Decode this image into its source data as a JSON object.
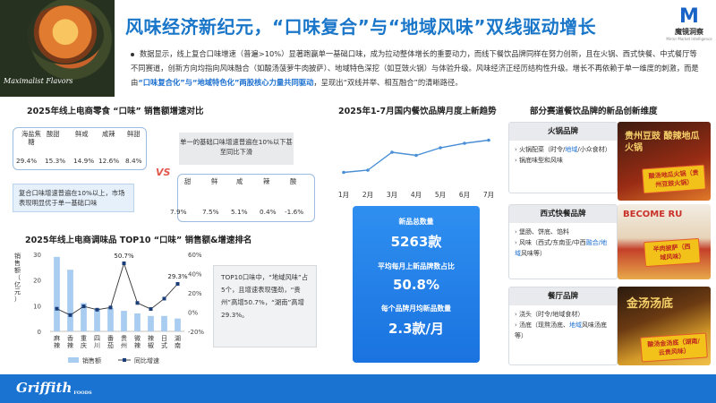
{
  "header": {
    "title": "风味经济新纪元，“口味复合”与“地域风味”双线驱动增长",
    "hero_caption": "Maximalist Flavors",
    "brand_name": "魔镜洞察",
    "brand_sub": "Mirror Market Intelligence",
    "brand_mark": "M"
  },
  "intro": {
    "p1": "数据显示，线上复合口味增速（普遍>10%）显著跑赢单一基础口味，成为拉动整体增长的重要动力，而线下餐饮品牌同样在努力创新，且在火锅、西式",
    "p2": "快餐、中式餐厅等不同赛道，创新方向均指向风味融合（如酸汤菠萝牛肉披萨）、地域特色深挖（如豆豉火锅）与体验升级。风味经济正经历结构性升级。",
    "p3a": "增长不再依赖于单一维度的刺激，而是由",
    "p3b": "“口味复合化”与“地域特色化”两股核心力量共同驱动",
    "p3c": "，呈现出“双线并举、相互融合”的清晰路径。"
  },
  "snacks": {
    "title": "2025年线上电商零食 “口味” 销售额增速对比",
    "vs": "VS",
    "compound": {
      "labels": [
        "海盐焦糖",
        "酸甜",
        "鲜咸",
        "咸辣",
        "鲜甜"
      ],
      "values": [
        "29.4%",
        "15.3%",
        "14.9%",
        "12.6%",
        "8.4%"
      ]
    },
    "single": {
      "labels": [
        "甜",
        "鲜",
        "咸",
        "辣",
        "酸"
      ],
      "values": [
        "7.9%",
        "7.5%",
        "5.1%",
        "0.4%",
        "-1.6%"
      ]
    },
    "note_single": "单一的基础口味增速普遍在10%以下甚至同比下滑",
    "note_compound": "复合口味增速普遍在10%以上，市场表现明显优于单一基础口味"
  },
  "seasoning_title": "2025年线上电商调味品 TOP10 “口味” 销售额&增速排名",
  "seasoning_callout": "TOP10口味中，“地域风味”占5个，且增速表现强劲，“贵州”高增50.7%，“湖南”高增29.3%。",
  "brand_trend_title": "2025年1-7月国内餐饮品牌月度上新趋势",
  "stats": {
    "l1": "新品总数量",
    "v1": "5263款",
    "l2": "平均每月上新品牌数占比",
    "v2": "50.8%",
    "l3": "每个品牌月均新品数量",
    "v3": "2.3款/月"
  },
  "right": {
    "title": "部分赛道餐饮品牌的新品创新维度",
    "boxes": [
      {
        "title": "火锅品牌",
        "items": [
          "火锅配菜（时令/",
          "地域",
          "/小众食材）",
          "锅底味型和风味"
        ]
      },
      {
        "title": "西式快餐品牌",
        "items": [
          "堡肠、饼底、馅料",
          "风味（西式/东南亚/中西",
          "融合/地域",
          "风味等）"
        ]
      },
      {
        "title": "餐厅品牌",
        "items": [
          "浇头（时令/地域食材）",
          "汤底（现熬汤底、",
          "地域",
          "风味汤底等）"
        ]
      }
    ],
    "badges": [
      "酸汤地瓜火锅（贵州豆豉火锅）",
      "半肉披萨（西域风味）",
      "酸汤金汤底（湖南/云贵风味）"
    ],
    "img_texts": [
      "贵州豆豉 酸辣地瓜火锅",
      "BECOME RU",
      "金汤汤底"
    ]
  },
  "footer": {
    "logo": "Griffith",
    "logo_sub": "FOODS"
  },
  "chart_data": [
    {
      "type": "bar",
      "title": "2025年线上电商调味品 TOP10 “口味” 销售额&增速排名",
      "categories": [
        "麻辣",
        "香辣",
        "重庆",
        "四川",
        "番茄",
        "贵州",
        "微辣",
        "辣椒",
        "日式",
        "湖南"
      ],
      "series": [
        {
          "name": "销售额",
          "values": [
            29,
            24,
            11,
            9,
            9,
            8,
            7,
            6,
            6,
            5
          ]
        },
        {
          "name": "同比增速",
          "values": [
            3.5,
            -3.1,
            6.0,
            2.5,
            4.8,
            50.7,
            9.5,
            3.2,
            14.0,
            29.3
          ]
        }
      ],
      "ylabel": "销售额（亿元）",
      "y_ticks": [
        "30",
        "20",
        "10",
        "0"
      ],
      "y2_ticks": [
        "60%",
        "40%",
        "20%",
        "0%",
        "-20%"
      ],
      "ylim": [
        0,
        30
      ],
      "y2lim": [
        -20,
        60
      ],
      "data_labels": [
        "50.7%",
        "29.3%"
      ],
      "legend": [
        "销售额",
        "同比增速"
      ],
      "legend_position": "bottom"
    },
    {
      "type": "line",
      "title": "2025年1-7月国内餐饮品牌月度上新趋势",
      "categories": [
        "1月",
        "2月",
        "3月",
        "4月",
        "5月",
        "6月",
        "7月"
      ],
      "values": [
        1.5,
        2.0,
        6.0,
        5.3,
        7.0,
        8.0,
        8.7
      ],
      "grid": false
    }
  ],
  "colors": {
    "primary": "#1a73d0",
    "title_blue": "#1976c9",
    "bar_blue": "#a9cdf0",
    "line_blue": "#4a8fd6",
    "accent_red": "#e2574c"
  }
}
